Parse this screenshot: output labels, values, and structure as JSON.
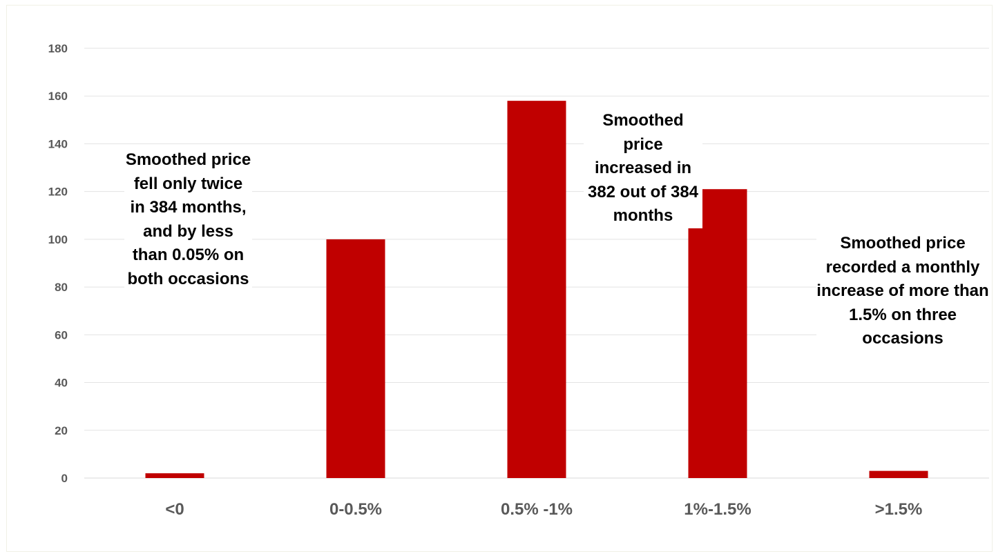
{
  "chart_data": {
    "type": "bar",
    "categories": [
      "<0",
      "0-0.5%",
      "0.5% -1%",
      "1%-1.5%",
      ">1.5%"
    ],
    "values": [
      2,
      100,
      158,
      121,
      3
    ],
    "title": "",
    "xlabel": "",
    "ylabel": "",
    "ylim": [
      0,
      180
    ],
    "yticks": [
      0,
      20,
      40,
      60,
      80,
      100,
      120,
      140,
      160,
      180
    ],
    "grid": true,
    "bar_color": "#c00000",
    "annotations": [
      "Smoothed price fell only twice in 384 months, and by less than 0.05% on both occasions",
      "Smoothed price increased in 382 out of 384 months",
      "Smoothed price recorded a monthly increase of more than 1.5% on three occasions"
    ]
  }
}
